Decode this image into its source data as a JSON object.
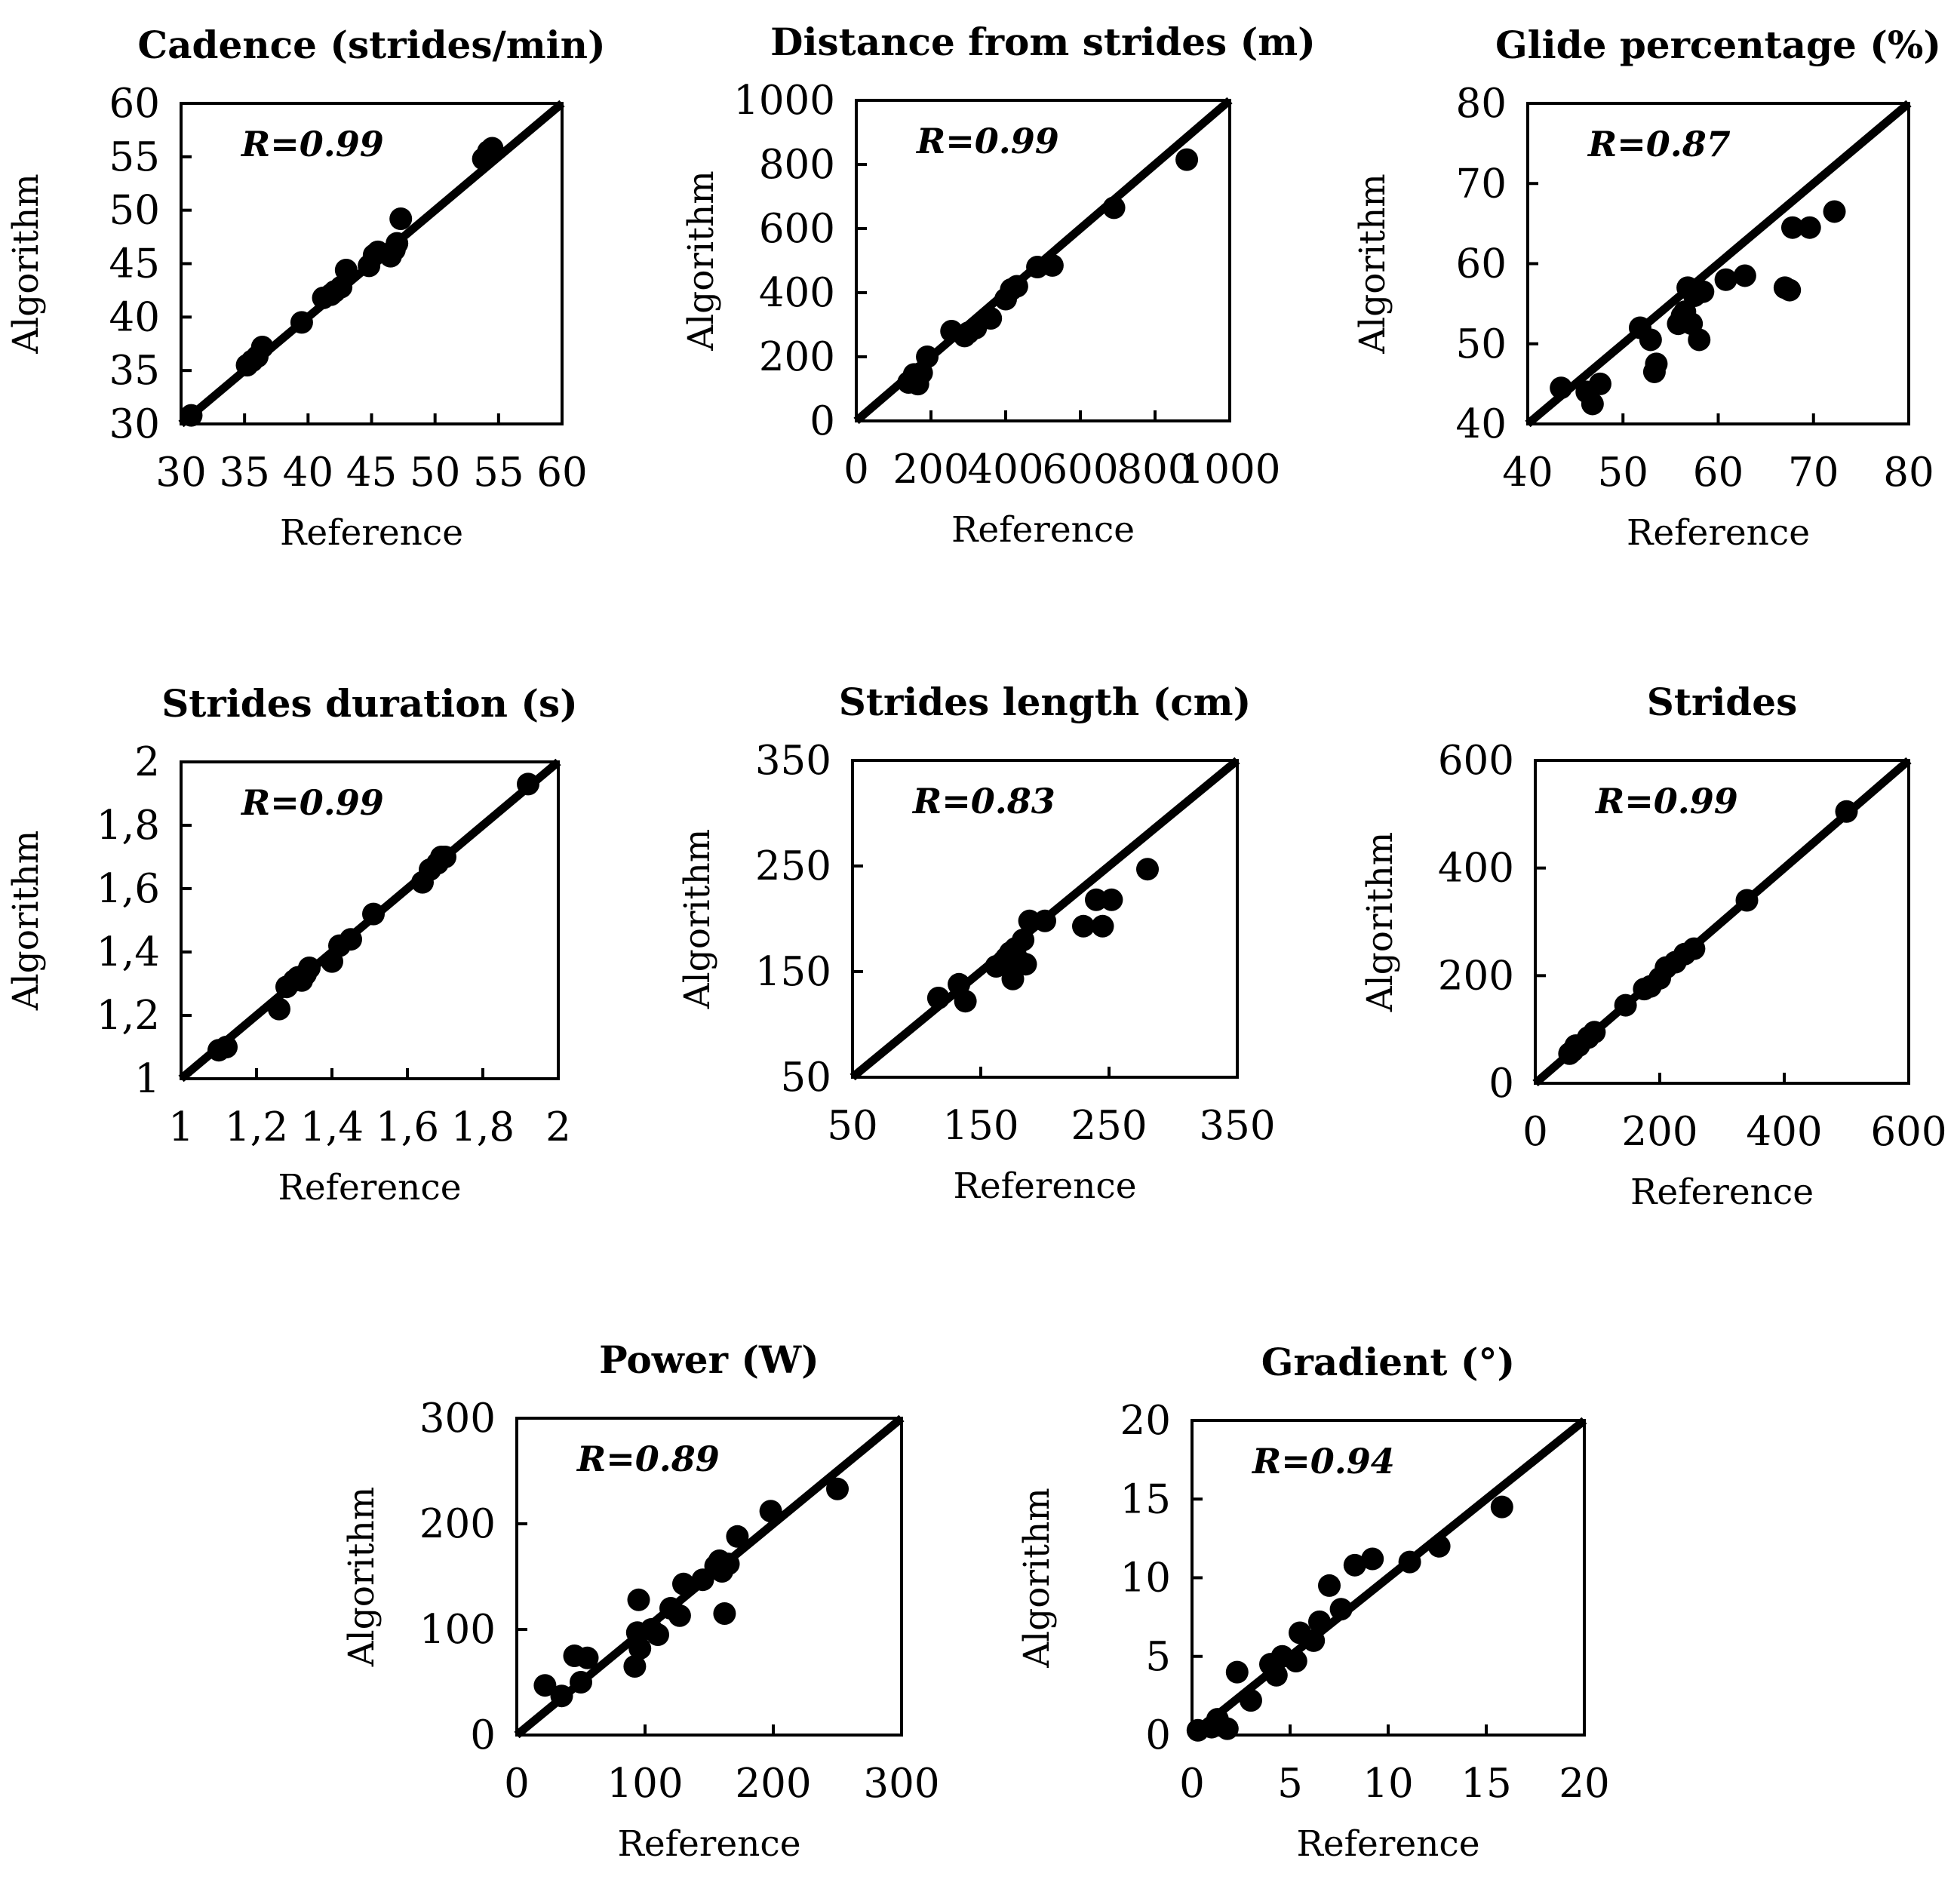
{
  "chart_data": [
    {
      "type": "scatter",
      "title": "Cadence (strides/min)",
      "xlabel": "Reference",
      "ylabel": "Algorithm",
      "r": "R=0.99",
      "range": [
        30,
        60
      ],
      "ticks": [
        30,
        35,
        40,
        45,
        50,
        55,
        60
      ],
      "tick_labels": [
        "30",
        "35",
        "40",
        "45",
        "50",
        "55",
        "60"
      ],
      "x": [
        30.8,
        35.2,
        35.6,
        36.0,
        36.4,
        39.5,
        41.2,
        41.8,
        42.1,
        42.6,
        43.0,
        44.8,
        45.2,
        45.5,
        46.5,
        46.8,
        47.0,
        47.3,
        53.8,
        54.2,
        54.5
      ],
      "y": [
        30.8,
        35.5,
        35.9,
        36.3,
        37.2,
        39.5,
        41.8,
        42.1,
        42.4,
        42.8,
        44.4,
        44.8,
        45.8,
        46.1,
        45.7,
        46.3,
        46.9,
        49.2,
        54.8,
        55.5,
        55.8
      ]
    },
    {
      "type": "scatter",
      "title": "Distance from strides (m)",
      "xlabel": "Reference",
      "ylabel": "Algorithm",
      "r": "R=0.99",
      "range": [
        0,
        1000
      ],
      "ticks": [
        0,
        200,
        400,
        600,
        800,
        1000
      ],
      "tick_labels": [
        "0",
        "200",
        "400",
        "600",
        "800",
        "1000"
      ],
      "x": [
        140,
        155,
        165,
        175,
        190,
        255,
        290,
        300,
        320,
        360,
        400,
        415,
        430,
        485,
        525,
        690,
        885
      ],
      "y": [
        120,
        145,
        115,
        150,
        200,
        280,
        265,
        275,
        290,
        320,
        380,
        410,
        420,
        480,
        485,
        665,
        815
      ]
    },
    {
      "type": "scatter",
      "title": "Glide percentage (%)",
      "xlabel": "Reference",
      "ylabel": "Algorithm",
      "r": "R=0.87",
      "range": [
        40,
        80
      ],
      "ticks": [
        40,
        50,
        60,
        70,
        80
      ],
      "tick_labels": [
        "40",
        "50",
        "60",
        "70",
        "80"
      ],
      "x": [
        43.5,
        46.2,
        46.8,
        47.6,
        51.8,
        52.9,
        53.3,
        53.5,
        55.8,
        56.2,
        56.5,
        56.8,
        57.2,
        57.5,
        58.0,
        58.4,
        60.8,
        62.8,
        67.0,
        67.5,
        67.8,
        69.6,
        72.2
      ],
      "y": [
        44.5,
        44.0,
        42.5,
        45.0,
        52.0,
        50.5,
        46.5,
        47.5,
        52.5,
        53.5,
        54.0,
        57.0,
        52.5,
        56.0,
        50.5,
        56.5,
        58.0,
        58.5,
        57.0,
        56.7,
        64.5,
        64.5,
        66.5
      ]
    },
    {
      "type": "scatter",
      "title": "Strides duration (s)",
      "xlabel": "Reference",
      "ylabel": "Algorithm",
      "r": "R=0.99",
      "range": [
        1,
        2
      ],
      "ticks": [
        1,
        1.2,
        1.4,
        1.6,
        1.8,
        2
      ],
      "tick_labels": [
        "1",
        "1,2",
        "1,4",
        "1,6",
        "1,8",
        "2"
      ],
      "x": [
        1.1,
        1.12,
        1.26,
        1.28,
        1.3,
        1.31,
        1.32,
        1.33,
        1.34,
        1.4,
        1.42,
        1.45,
        1.51,
        1.64,
        1.66,
        1.68,
        1.69,
        1.7,
        1.92
      ],
      "y": [
        1.09,
        1.1,
        1.22,
        1.29,
        1.31,
        1.32,
        1.31,
        1.33,
        1.35,
        1.37,
        1.42,
        1.44,
        1.52,
        1.62,
        1.66,
        1.68,
        1.7,
        1.7,
        1.93
      ]
    },
    {
      "type": "scatter",
      "title": "Strides length (cm)",
      "xlabel": "Reference",
      "ylabel": "Algorithm",
      "r": "R=0.83",
      "range": [
        50,
        350
      ],
      "ticks": [
        50,
        150,
        250,
        350
      ],
      "tick_labels": [
        "50",
        "150",
        "250",
        "350"
      ],
      "x": [
        117,
        133,
        138,
        162,
        168,
        170,
        173,
        175,
        177,
        180,
        183,
        185,
        188,
        200,
        230,
        240,
        245,
        252,
        280
      ],
      "y": [
        125,
        138,
        122,
        155,
        160,
        163,
        168,
        143,
        172,
        160,
        180,
        157,
        198,
        198,
        193,
        218,
        193,
        218,
        247
      ]
    },
    {
      "type": "scatter",
      "title": "Strides",
      "xlabel": "Reference",
      "ylabel": "Algorithm",
      "r": "R=0.99",
      "range": [
        0,
        600
      ],
      "ticks": [
        0,
        200,
        400,
        600
      ],
      "tick_labels": [
        "0",
        "200",
        "400",
        "600"
      ],
      "x": [
        55,
        60,
        65,
        70,
        85,
        95,
        145,
        175,
        185,
        200,
        210,
        225,
        240,
        255,
        340,
        500
      ],
      "y": [
        55,
        60,
        70,
        70,
        85,
        95,
        145,
        175,
        180,
        195,
        215,
        225,
        240,
        250,
        340,
        505
      ]
    },
    {
      "type": "scatter",
      "title": "Power (W)",
      "xlabel": "Reference",
      "ylabel": "Algorithm",
      "r": "R=0.89",
      "range": [
        0,
        300
      ],
      "ticks": [
        0,
        100,
        200,
        300
      ],
      "tick_labels": [
        "0",
        "100",
        "200",
        "300"
      ],
      "x": [
        22,
        35,
        45,
        50,
        55,
        92,
        94,
        95,
        96,
        105,
        110,
        120,
        127,
        130,
        145,
        155,
        158,
        160,
        162,
        165,
        172,
        198,
        250
      ],
      "y": [
        47,
        37,
        75,
        50,
        73,
        65,
        97,
        128,
        82,
        100,
        95,
        120,
        113,
        143,
        147,
        160,
        165,
        155,
        115,
        162,
        188,
        212,
        233
      ]
    },
    {
      "type": "scatter",
      "title": "Gradient (°)",
      "xlabel": "Reference",
      "ylabel": "Algorithm",
      "r": "R=0.94",
      "range": [
        0,
        20
      ],
      "ticks": [
        0,
        5,
        10,
        15,
        20
      ],
      "tick_labels": [
        "0",
        "5",
        "10",
        "15",
        "20"
      ],
      "x": [
        0.3,
        1.0,
        1.3,
        1.8,
        2.3,
        3.0,
        4.0,
        4.3,
        4.6,
        5.3,
        5.5,
        6.2,
        6.5,
        7.0,
        7.6,
        8.3,
        9.2,
        11.1,
        12.6,
        15.8
      ],
      "y": [
        0.3,
        0.5,
        1.0,
        0.4,
        4.0,
        2.2,
        4.5,
        3.8,
        5.0,
        4.7,
        6.5,
        6.0,
        7.2,
        9.5,
        8.0,
        10.8,
        11.2,
        11.0,
        12.0,
        14.5
      ]
    }
  ]
}
